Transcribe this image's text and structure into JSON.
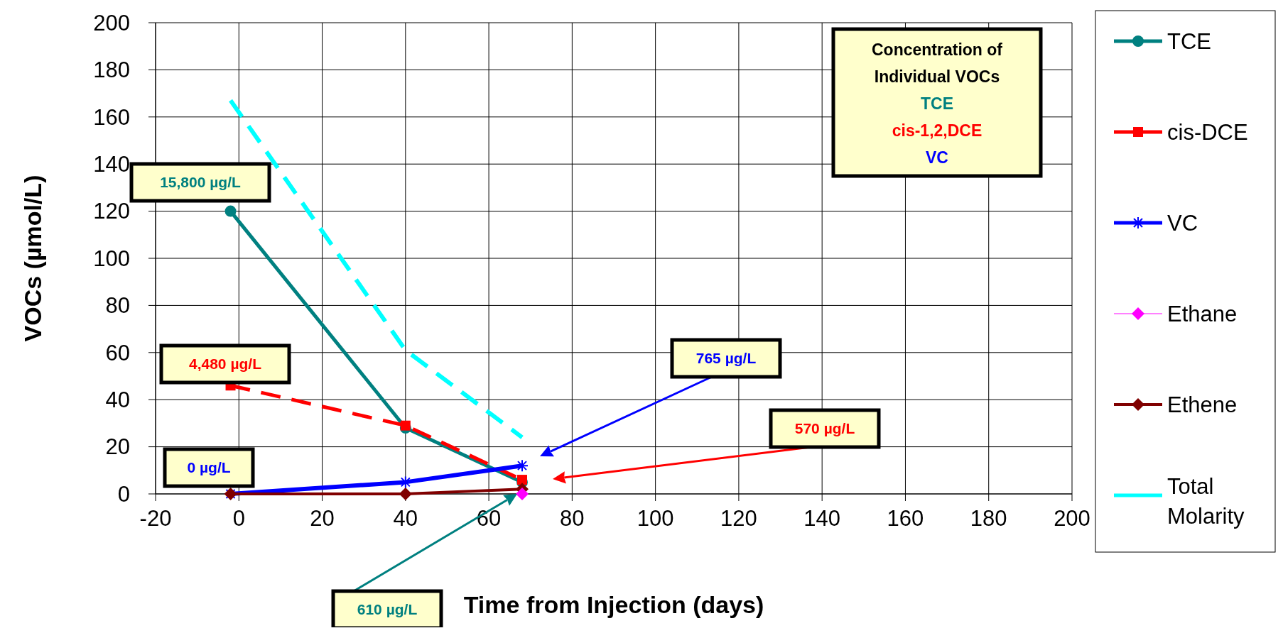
{
  "chart_data": {
    "type": "line",
    "xlabel": "Time from Injection (days)",
    "ylabel": "VOCs (µmol/L)",
    "x": [
      -2,
      40,
      68
    ],
    "series": [
      {
        "name": "TCE",
        "color": "#008080",
        "values": [
          120,
          28,
          5
        ],
        "marker": "circle",
        "line_style": "solid"
      },
      {
        "name": "cis-DCE",
        "color": "#ff0000",
        "values": [
          46,
          29,
          6
        ],
        "marker": "square",
        "line_style": "dashed"
      },
      {
        "name": "VC",
        "color": "#0000ff",
        "values": [
          0,
          5,
          12
        ],
        "marker": "cross",
        "line_style": "solid"
      },
      {
        "name": "Ethane",
        "color": "#ff00ff",
        "values": [
          null,
          null,
          0
        ],
        "marker": "diamond",
        "line_style": "solid"
      },
      {
        "name": "Ethene",
        "color": "#800000",
        "values": [
          0,
          0,
          2
        ],
        "marker": "diamond",
        "line_style": "solid"
      },
      {
        "name": "Total Molarity",
        "color": "#00ffff",
        "values": [
          167,
          61,
          24
        ],
        "marker": "none",
        "line_style": "dashed"
      }
    ],
    "xlim": [
      -20,
      200
    ],
    "xticks": [
      -20,
      0,
      20,
      40,
      60,
      80,
      100,
      120,
      140,
      160,
      180,
      200
    ],
    "ylim": [
      0,
      200
    ],
    "yticks": [
      0,
      20,
      40,
      60,
      80,
      100,
      120,
      140,
      160,
      180,
      200
    ],
    "grid": true,
    "legend": "right",
    "annotations": [
      "Concentration of Individual VOCs",
      "TCE",
      "cis-1,2,DCE",
      "VC",
      "15,800 µg/L",
      "4,480 µg/L",
      "0 µg/L",
      "765 µg/L",
      "570 µg/L",
      "610 µg/L"
    ]
  }
}
